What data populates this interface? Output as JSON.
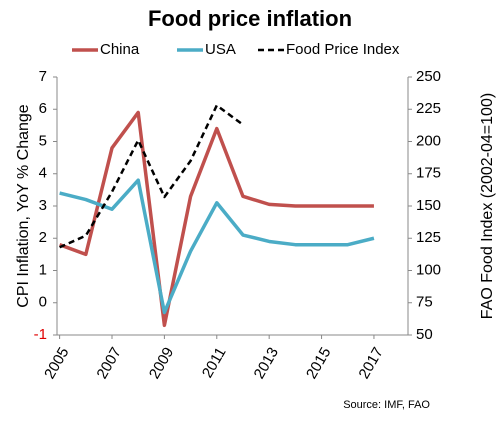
{
  "chart_data": {
    "type": "line",
    "title": "Food price inflation",
    "y_label": "CPI Inflation, YoY % Change",
    "y2_label": "FAO Food Index (2002-04=100)",
    "source": "Source: IMF, FAO",
    "x": [
      2005,
      2006,
      2007,
      2008,
      2009,
      2010,
      2011,
      2012,
      2013,
      2014,
      2015,
      2016,
      2017
    ],
    "xlim": [
      2004.9,
      2018.3
    ],
    "xticks": [
      2005,
      2007,
      2009,
      2011,
      2013,
      2015,
      2017
    ],
    "ylim": [
      -1,
      7
    ],
    "yticks": [
      -1,
      0,
      1,
      2,
      3,
      4,
      5,
      6,
      7
    ],
    "y2lim": [
      50,
      250
    ],
    "y2ticks": [
      50,
      75,
      100,
      125,
      150,
      175,
      200,
      225,
      250
    ],
    "series": [
      {
        "name": "China",
        "color": "#c0504d",
        "values": [
          1.8,
          1.5,
          4.8,
          5.9,
          -0.7,
          3.3,
          5.4,
          3.3,
          3.05,
          3.0,
          3.0,
          3.0,
          3.0
        ]
      },
      {
        "name": "USA",
        "color": "#4bacc6",
        "values": [
          3.4,
          3.2,
          2.9,
          3.8,
          -0.3,
          1.6,
          3.1,
          2.1,
          1.9,
          1.8,
          1.8,
          1.8,
          2.0
        ]
      },
      {
        "name": "Food Price Index",
        "color": "#000000",
        "axis": "y2",
        "dashed": true,
        "values": [
          118,
          127,
          161,
          201,
          157,
          185,
          228,
          213,
          null,
          null,
          null,
          null,
          null
        ]
      }
    ]
  }
}
